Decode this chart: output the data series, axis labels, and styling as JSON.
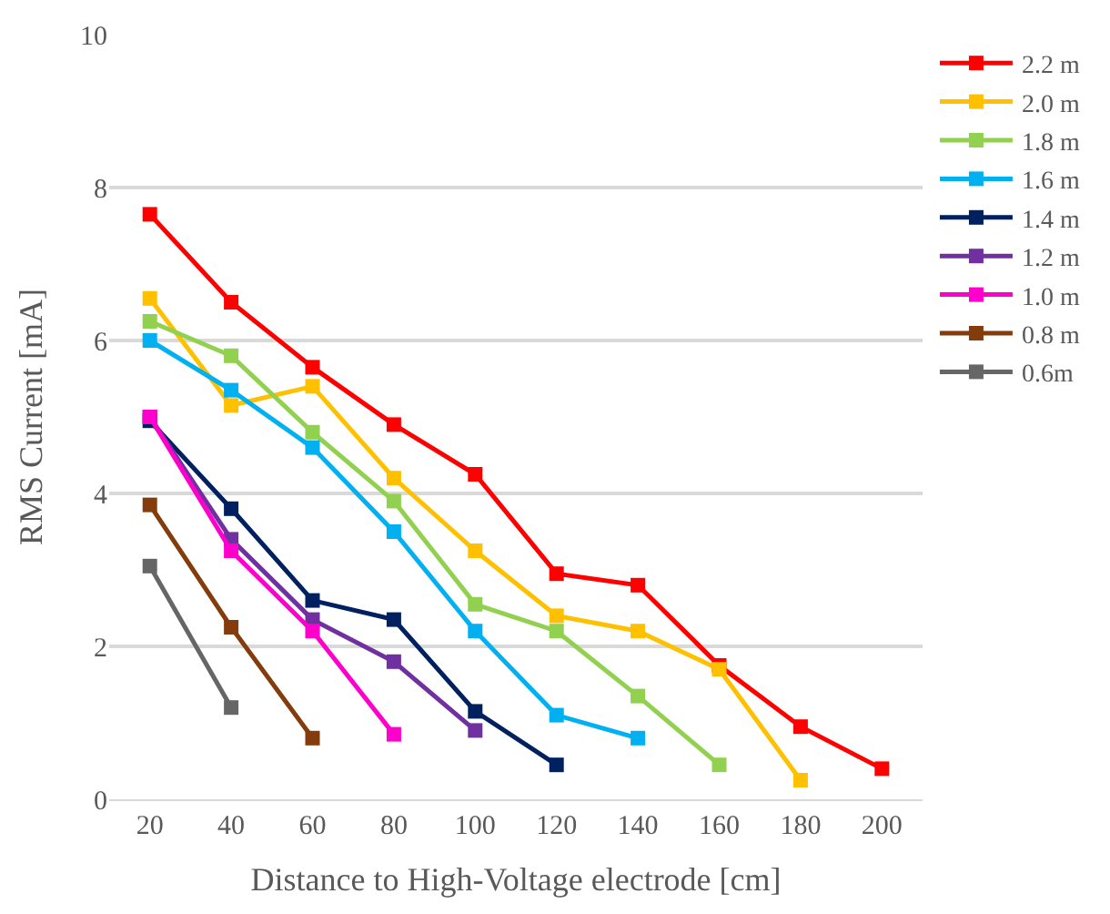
{
  "chart_data": {
    "type": "line",
    "xlabel": "Distance to High-Voltage electrode [cm]",
    "ylabel": "RMS Current [mA]",
    "xlim": [
      10,
      210
    ],
    "xticks": [
      20,
      40,
      60,
      80,
      100,
      120,
      140,
      160,
      180,
      200
    ],
    "ylim": [
      0,
      10
    ],
    "yticks": [
      0,
      2,
      4,
      6,
      8,
      10
    ],
    "grid": "y",
    "legend": "top right",
    "marker": "square",
    "line_style": "solid",
    "series": [
      {
        "name": "2.2 m",
        "color": "#ff0000",
        "x": [
          20,
          40,
          60,
          80,
          100,
          120,
          140,
          160,
          180,
          200
        ],
        "values": [
          7.65,
          6.5,
          5.65,
          4.9,
          4.25,
          2.95,
          2.8,
          1.75,
          0.95,
          0.4
        ]
      },
      {
        "name": "2.0 m",
        "color": "#ffc000",
        "x": [
          20,
          40,
          60,
          80,
          100,
          120,
          140,
          160,
          180
        ],
        "values": [
          6.55,
          5.15,
          5.4,
          4.2,
          3.25,
          2.4,
          2.2,
          1.7,
          0.25
        ]
      },
      {
        "name": "1.8 m",
        "color": "#92d050",
        "x": [
          20,
          40,
          60,
          80,
          100,
          120,
          140,
          160
        ],
        "values": [
          6.25,
          5.8,
          4.8,
          3.9,
          2.55,
          2.2,
          1.35,
          0.45
        ]
      },
      {
        "name": "1.6 m",
        "color": "#00b0f0",
        "x": [
          20,
          40,
          60,
          80,
          100,
          120,
          140
        ],
        "values": [
          6.0,
          5.35,
          4.6,
          3.5,
          2.2,
          1.1,
          0.8
        ]
      },
      {
        "name": "1.4 m",
        "color": "#002060",
        "x": [
          20,
          40,
          60,
          80,
          100,
          120
        ],
        "values": [
          4.95,
          3.8,
          2.6,
          2.35,
          1.15,
          0.45
        ]
      },
      {
        "name": "1.2 m",
        "color": "#7030a0",
        "x": [
          20,
          40,
          60,
          80,
          100
        ],
        "values": [
          5.0,
          3.4,
          2.35,
          1.8,
          0.9
        ]
      },
      {
        "name": "1.0 m",
        "color": "#ff00cc",
        "x": [
          20,
          40,
          60,
          80
        ],
        "values": [
          5.0,
          3.25,
          2.2,
          0.85
        ]
      },
      {
        "name": "0.8 m",
        "color": "#843c0c",
        "x": [
          20,
          40,
          60
        ],
        "values": [
          3.85,
          2.25,
          0.8
        ]
      },
      {
        "name": "0.6m",
        "color": "#666666",
        "x": [
          20,
          40
        ],
        "values": [
          3.05,
          1.2
        ]
      }
    ]
  }
}
